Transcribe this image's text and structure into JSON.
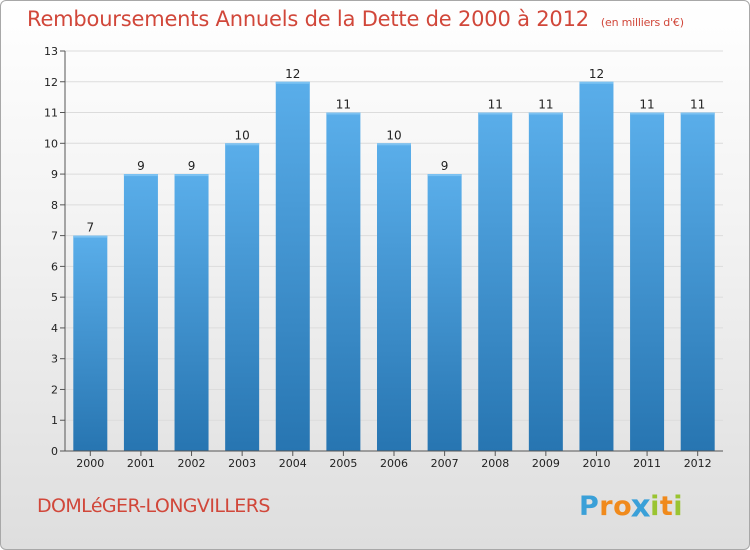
{
  "chart_data": {
    "type": "bar",
    "title": "Remboursements Annuels de la Dette de 2000 à 2012",
    "subtitle": "(en milliers d'€)",
    "categories": [
      "2000",
      "2001",
      "2002",
      "2003",
      "2004",
      "2005",
      "2006",
      "2007",
      "2008",
      "2009",
      "2010",
      "2011",
      "2012"
    ],
    "values": [
      7,
      9,
      9,
      10,
      12,
      11,
      10,
      9,
      11,
      11,
      12,
      11,
      11
    ],
    "data_labels": [
      "7",
      "9",
      "9",
      "10",
      "12",
      "11",
      "10",
      "9",
      "11",
      "11",
      "12",
      "11",
      "11"
    ],
    "ylim": [
      0,
      13
    ],
    "yticks": [
      "0",
      "1",
      "2",
      "3",
      "4",
      "5",
      "6",
      "7",
      "8",
      "9",
      "10",
      "11",
      "12",
      "13"
    ],
    "xlabel": "",
    "ylabel": "",
    "grid": true,
    "bar_color_top": "#5aaeea",
    "bar_color_bottom": "#2775b1",
    "grid_color": "#dcdcdc"
  },
  "footer": {
    "place": "DOMLéGER-LONGVILLERS",
    "logo_letters": [
      "P",
      "r",
      "o",
      "x",
      "i",
      "t",
      "i"
    ],
    "logo_colors": [
      "#3aa0d8",
      "#f08a1c",
      "#f08a1c",
      "#3aa0d8",
      "#9ac431",
      "#f08a1c",
      "#9ac431"
    ]
  },
  "colors": {
    "title": "#d1473a",
    "axis_text": "#222222"
  }
}
